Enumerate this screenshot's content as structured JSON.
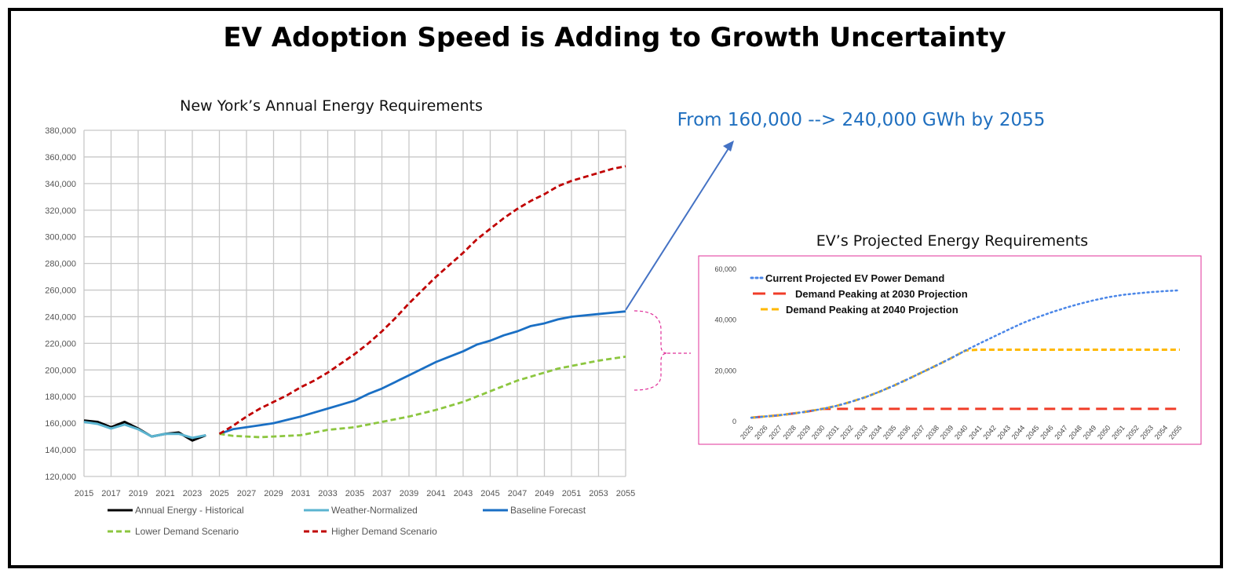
{
  "title": "EV Adoption Speed is Adding to Growth Uncertainty",
  "annotation": {
    "text": "From 160,000 --> 240,000 GWh by 2055",
    "color": "#1f6fbf",
    "arrow_color": "#4472c4",
    "brace_color": "#e0309a"
  },
  "chart_data": [
    {
      "type": "line",
      "title": "New York’s Annual Energy Requirements",
      "xlabel": "",
      "ylabel": "",
      "xlim": [
        2015,
        2055
      ],
      "ylim": [
        120000,
        380000
      ],
      "grid": true,
      "legend_position": "bottom",
      "x_ticks": [
        2015,
        2017,
        2019,
        2021,
        2023,
        2025,
        2027,
        2029,
        2031,
        2033,
        2035,
        2037,
        2039,
        2041,
        2043,
        2045,
        2047,
        2049,
        2051,
        2053,
        2055
      ],
      "y_ticks": [
        "120,000",
        "140,000",
        "160,000",
        "180,000",
        "200,000",
        "220,000",
        "240,000",
        "260,000",
        "280,000",
        "300,000",
        "320,000",
        "340,000",
        "360,000",
        "380,000"
      ],
      "series": [
        {
          "name": "Annual Energy - Historical",
          "color": "#000000",
          "style": "solid",
          "x_start": 2015,
          "values": [
            162000,
            161000,
            157000,
            161000,
            156000,
            150000,
            152000,
            153000,
            147000,
            151000
          ]
        },
        {
          "name": "Weather-Normalized",
          "color": "#5bb4d0",
          "style": "solid",
          "x_start": 2015,
          "values": [
            161000,
            159500,
            156000,
            159000,
            155500,
            150000,
            152000,
            152000,
            149000,
            151000
          ]
        },
        {
          "name": "Baseline Forecast",
          "color": "#1a6fc4",
          "style": "solid",
          "x_start": 2025,
          "values": [
            152000,
            155500,
            157000,
            158500,
            160000,
            162500,
            165000,
            168000,
            171000,
            174000,
            177000,
            182000,
            186000,
            191000,
            196000,
            201000,
            206000,
            210000,
            214000,
            219000,
            222000,
            226000,
            229000,
            233000,
            235000,
            238000,
            240000,
            241000,
            242000,
            243000,
            244000
          ]
        },
        {
          "name": "Lower Demand Scenario",
          "color": "#8cc63f",
          "style": "dashed",
          "x_start": 2025,
          "values": [
            152000,
            150500,
            150000,
            149500,
            150000,
            150500,
            151000,
            153000,
            155000,
            156000,
            157000,
            159000,
            161000,
            163000,
            165000,
            167500,
            170000,
            173000,
            176000,
            180000,
            184000,
            188000,
            192000,
            195000,
            198000,
            201000,
            203000,
            205000,
            207000,
            208500,
            210000
          ]
        },
        {
          "name": "Higher Demand Scenario",
          "color": "#c00000",
          "style": "dashed",
          "x_start": 2025,
          "values": [
            152000,
            158000,
            165000,
            171000,
            176000,
            181000,
            187000,
            192000,
            198000,
            205000,
            212000,
            220000,
            229000,
            239000,
            250000,
            260000,
            270000,
            279000,
            288000,
            298000,
            306000,
            314000,
            321000,
            327000,
            332000,
            338000,
            342000,
            345000,
            348000,
            351000,
            353000
          ]
        }
      ]
    },
    {
      "type": "line",
      "title": "EV’s Projected Energy Requirements",
      "xlabel": "",
      "ylabel": "",
      "xlim": [
        2025,
        2055
      ],
      "ylim": [
        0,
        60000
      ],
      "grid": false,
      "legend_position": "top-left",
      "y_ticks": [
        "0",
        "20,000",
        "40,000",
        "60,000"
      ],
      "x_ticks": [
        2025,
        2026,
        2027,
        2028,
        2029,
        2030,
        2031,
        2032,
        2033,
        2034,
        2035,
        2036,
        2037,
        2038,
        2039,
        2040,
        2041,
        2042,
        2043,
        2044,
        2045,
        2046,
        2047,
        2048,
        2049,
        2050,
        2051,
        2052,
        2053,
        2054,
        2055
      ],
      "series": [
        {
          "name": "Current Projected EV Power Demand",
          "color": "#4a86e8",
          "style": "dotted",
          "x_start": 2025,
          "values": [
            1500,
            2000,
            2500,
            3200,
            4000,
            5000,
            6200,
            7800,
            9600,
            11800,
            14200,
            16800,
            19500,
            22200,
            25000,
            28000,
            30800,
            33500,
            36200,
            38800,
            41000,
            43000,
            44800,
            46400,
            47800,
            49000,
            49900,
            50500,
            51000,
            51400,
            51700
          ]
        },
        {
          "name": "Demand Peaking at 2030 Projection",
          "color": "#f03c28",
          "style": "longdash",
          "x_start": 2025,
          "values": [
            1500,
            2000,
            2500,
            3200,
            4000,
            5000,
            5000,
            5000,
            5000,
            5000,
            5000,
            5000,
            5000,
            5000,
            5000,
            5000,
            5000,
            5000,
            5000,
            5000,
            5000,
            5000,
            5000,
            5000,
            5000,
            5000,
            5000,
            5000,
            5000,
            5000,
            5000
          ]
        },
        {
          "name": "Demand Peaking at 2040 Projection",
          "color": "#ffb800",
          "style": "dashed",
          "x_start": 2025,
          "values": [
            1500,
            2000,
            2500,
            3200,
            4000,
            5000,
            6200,
            7800,
            9600,
            11800,
            14200,
            16800,
            19500,
            22200,
            25000,
            28000,
            28300,
            28300,
            28300,
            28300,
            28300,
            28300,
            28300,
            28300,
            28300,
            28300,
            28300,
            28300,
            28300,
            28300,
            28300
          ]
        }
      ]
    }
  ]
}
